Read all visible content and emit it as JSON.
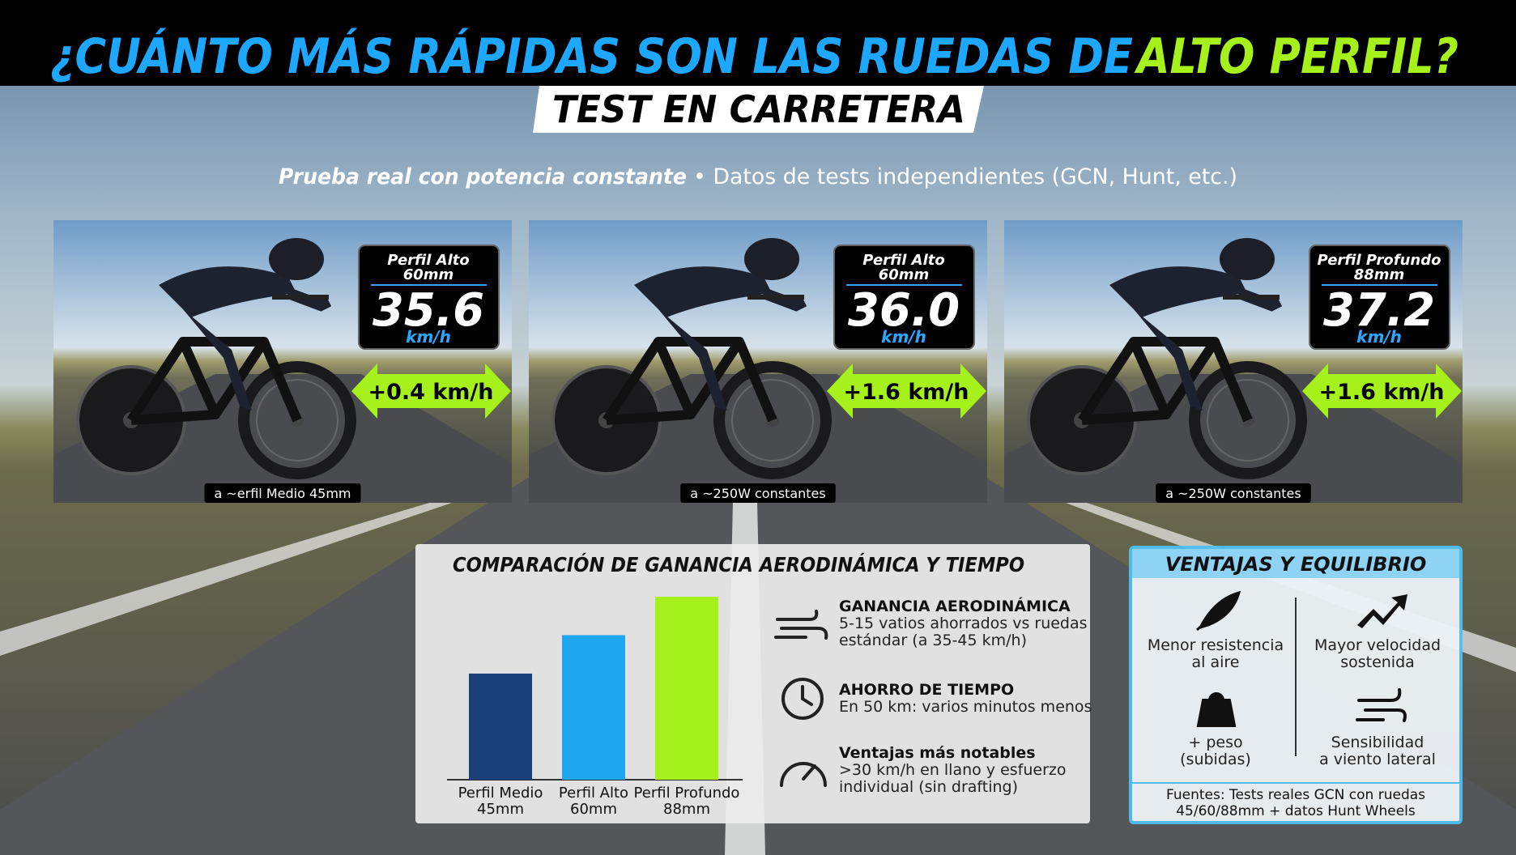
{
  "header": {
    "title_part1": "¿CUÁNTO MÁS RÁPIDAS SON LAS RUEDAS DE",
    "title_part2": "ALTO PERFIL?",
    "subtitle": "TEST EN CARRETERA",
    "tagline_bold": "Prueba real con potencia constante",
    "tagline_rest": "• Datos de tests independientes (GCN, Hunt, etc.)"
  },
  "panels": [
    {
      "wheel_name": "Perfil Alto",
      "wheel_depth": "60mm",
      "speed": "35.6",
      "unit": "km/h",
      "gain": "+0.4 km/h",
      "caption": "a ~erfil Medio 45mm"
    },
    {
      "wheel_name": "Perfil Alto",
      "wheel_depth": "60mm",
      "speed": "36.0",
      "unit": "km/h",
      "gain": "+1.6 km/h",
      "caption": "a ~250W constantes"
    },
    {
      "wheel_name": "Perfil Profundo",
      "wheel_depth": "88mm",
      "speed": "37.2",
      "unit": "km/h",
      "gain": "+1.6 km/h",
      "caption": "a ~250W constantes"
    }
  ],
  "chart_data": {
    "type": "bar",
    "title": "COMPARACIÓN DE GANANCIA AERODINÁMICA Y TIEMPO",
    "categories": [
      [
        "Perfil Medio",
        "45mm"
      ],
      [
        "Perfil Alto",
        "60mm"
      ],
      [
        "Perfil Profundo",
        "88mm"
      ]
    ],
    "values": [
      58,
      79,
      100
    ],
    "colors": [
      "#1b3f7a",
      "#1ea7ef",
      "#a6f01c"
    ]
  },
  "comparison_items": [
    {
      "title": "GANANCIA AERODINÁMICA",
      "lines": [
        "5-15 vatios ahorrados vs ruedas",
        "estándar (a 35-45 km/h)"
      ]
    },
    {
      "title": "AHORRO DE TIEMPO",
      "lines": [
        "En 50 km: varios minutos menos"
      ]
    },
    {
      "title": "Ventajas más notables",
      "lines": [
        ">30 km/h en llano y esfuerzo",
        "individual (sin drafting)"
      ]
    }
  ],
  "advantages": {
    "title": "VENTAJAS Y EQUILIBRIO",
    "items": [
      [
        "Menor resistencia",
        "al aire"
      ],
      [
        "Mayor velocidad",
        "sostenida"
      ],
      [
        "+ peso",
        "(subidas)"
      ],
      [
        "Sensibilidad",
        "a viento lateral"
      ]
    ],
    "sources": [
      "Fuentes: Tests reales GCN con ruedas",
      "45/60/88mm + datos Hunt Wheels"
    ]
  }
}
